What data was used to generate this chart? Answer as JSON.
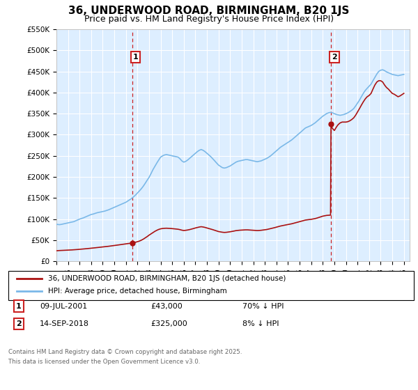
{
  "title": "36, UNDERWOOD ROAD, BIRMINGHAM, B20 1JS",
  "subtitle": "Price paid vs. HM Land Registry's House Price Index (HPI)",
  "ylim": [
    0,
    550000
  ],
  "yticks": [
    0,
    50000,
    100000,
    150000,
    200000,
    250000,
    300000,
    350000,
    400000,
    450000,
    500000,
    550000
  ],
  "ytick_labels": [
    "£0",
    "£50K",
    "£100K",
    "£150K",
    "£200K",
    "£250K",
    "£300K",
    "£350K",
    "£400K",
    "£450K",
    "£500K",
    "£550K"
  ],
  "background_color": "#ffffff",
  "plot_bg_color": "#ddeeff",
  "grid_color": "#ffffff",
  "hpi_color": "#7ab8e8",
  "price_color": "#aa1111",
  "vline_color": "#cc2222",
  "marker_box_color": "#cc2222",
  "title_fontsize": 11,
  "subtitle_fontsize": 9,
  "transaction1": {
    "date": "09-JUL-2001",
    "price": 43000,
    "hpi_diff": "70% ↓ HPI",
    "label": "1"
  },
  "transaction2": {
    "date": "14-SEP-2018",
    "price": 325000,
    "hpi_diff": "8% ↓ HPI",
    "label": "2"
  },
  "legend_label1": "36, UNDERWOOD ROAD, BIRMINGHAM, B20 1JS (detached house)",
  "legend_label2": "HPI: Average price, detached house, Birmingham",
  "footer1": "Contains HM Land Registry data © Crown copyright and database right 2025.",
  "footer2": "This data is licensed under the Open Government Licence v3.0.",
  "hpi_data": [
    [
      1995.0,
      87000
    ],
    [
      1995.08,
      87500
    ],
    [
      1995.17,
      87200
    ],
    [
      1995.25,
      86800
    ],
    [
      1995.33,
      87100
    ],
    [
      1995.42,
      87500
    ],
    [
      1995.5,
      88000
    ],
    [
      1995.58,
      88500
    ],
    [
      1995.67,
      89000
    ],
    [
      1995.75,
      89500
    ],
    [
      1995.83,
      90000
    ],
    [
      1995.92,
      90500
    ],
    [
      1996.0,
      91000
    ],
    [
      1996.08,
      91500
    ],
    [
      1996.17,
      92000
    ],
    [
      1996.25,
      92500
    ],
    [
      1996.33,
      93000
    ],
    [
      1996.42,
      93500
    ],
    [
      1996.5,
      94000
    ],
    [
      1996.58,
      95000
    ],
    [
      1996.67,
      96000
    ],
    [
      1996.75,
      97000
    ],
    [
      1996.83,
      98000
    ],
    [
      1996.92,
      99000
    ],
    [
      1997.0,
      100000
    ],
    [
      1997.17,
      101500
    ],
    [
      1997.33,
      103000
    ],
    [
      1997.5,
      105000
    ],
    [
      1997.67,
      107000
    ],
    [
      1997.83,
      109000
    ],
    [
      1998.0,
      111000
    ],
    [
      1998.17,
      112000
    ],
    [
      1998.33,
      113500
    ],
    [
      1998.5,
      115000
    ],
    [
      1998.67,
      116000
    ],
    [
      1998.83,
      117000
    ],
    [
      1999.0,
      118000
    ],
    [
      1999.17,
      119000
    ],
    [
      1999.33,
      120500
    ],
    [
      1999.5,
      122000
    ],
    [
      1999.67,
      124000
    ],
    [
      1999.83,
      126000
    ],
    [
      2000.0,
      128000
    ],
    [
      2000.17,
      130000
    ],
    [
      2000.33,
      132000
    ],
    [
      2000.5,
      134000
    ],
    [
      2000.67,
      136000
    ],
    [
      2000.83,
      138000
    ],
    [
      2001.0,
      140000
    ],
    [
      2001.17,
      143000
    ],
    [
      2001.33,
      146000
    ],
    [
      2001.5,
      149000
    ],
    [
      2001.67,
      153000
    ],
    [
      2001.83,
      157000
    ],
    [
      2002.0,
      162000
    ],
    [
      2002.17,
      167000
    ],
    [
      2002.33,
      172000
    ],
    [
      2002.5,
      178000
    ],
    [
      2002.67,
      185000
    ],
    [
      2002.83,
      192000
    ],
    [
      2003.0,
      199000
    ],
    [
      2003.17,
      208000
    ],
    [
      2003.33,
      217000
    ],
    [
      2003.5,
      225000
    ],
    [
      2003.67,
      233000
    ],
    [
      2003.83,
      240000
    ],
    [
      2004.0,
      247000
    ],
    [
      2004.17,
      250000
    ],
    [
      2004.33,
      252000
    ],
    [
      2004.5,
      253000
    ],
    [
      2004.67,
      252000
    ],
    [
      2004.83,
      251000
    ],
    [
      2005.0,
      250000
    ],
    [
      2005.17,
      249000
    ],
    [
      2005.33,
      248000
    ],
    [
      2005.5,
      247000
    ],
    [
      2005.67,
      243000
    ],
    [
      2005.83,
      238000
    ],
    [
      2006.0,
      235000
    ],
    [
      2006.17,
      237000
    ],
    [
      2006.33,
      240000
    ],
    [
      2006.5,
      244000
    ],
    [
      2006.67,
      248000
    ],
    [
      2006.83,
      252000
    ],
    [
      2007.0,
      256000
    ],
    [
      2007.17,
      260000
    ],
    [
      2007.33,
      263000
    ],
    [
      2007.5,
      265000
    ],
    [
      2007.67,
      263000
    ],
    [
      2007.83,
      260000
    ],
    [
      2008.0,
      256000
    ],
    [
      2008.17,
      252000
    ],
    [
      2008.33,
      248000
    ],
    [
      2008.5,
      243000
    ],
    [
      2008.67,
      238000
    ],
    [
      2008.83,
      233000
    ],
    [
      2009.0,
      228000
    ],
    [
      2009.17,
      225000
    ],
    [
      2009.33,
      222000
    ],
    [
      2009.5,
      221000
    ],
    [
      2009.67,
      222000
    ],
    [
      2009.83,
      224000
    ],
    [
      2010.0,
      226000
    ],
    [
      2010.17,
      229000
    ],
    [
      2010.33,
      232000
    ],
    [
      2010.5,
      235000
    ],
    [
      2010.67,
      237000
    ],
    [
      2010.83,
      238000
    ],
    [
      2011.0,
      239000
    ],
    [
      2011.17,
      240000
    ],
    [
      2011.33,
      241000
    ],
    [
      2011.5,
      241000
    ],
    [
      2011.67,
      240000
    ],
    [
      2011.83,
      239000
    ],
    [
      2012.0,
      238000
    ],
    [
      2012.17,
      237000
    ],
    [
      2012.33,
      236000
    ],
    [
      2012.5,
      237000
    ],
    [
      2012.67,
      238000
    ],
    [
      2012.83,
      240000
    ],
    [
      2013.0,
      242000
    ],
    [
      2013.17,
      244000
    ],
    [
      2013.33,
      247000
    ],
    [
      2013.5,
      250000
    ],
    [
      2013.67,
      254000
    ],
    [
      2013.83,
      258000
    ],
    [
      2014.0,
      262000
    ],
    [
      2014.17,
      266000
    ],
    [
      2014.33,
      270000
    ],
    [
      2014.5,
      273000
    ],
    [
      2014.67,
      276000
    ],
    [
      2014.83,
      279000
    ],
    [
      2015.0,
      282000
    ],
    [
      2015.17,
      285000
    ],
    [
      2015.33,
      288000
    ],
    [
      2015.5,
      292000
    ],
    [
      2015.67,
      296000
    ],
    [
      2015.83,
      300000
    ],
    [
      2016.0,
      304000
    ],
    [
      2016.17,
      308000
    ],
    [
      2016.33,
      312000
    ],
    [
      2016.5,
      316000
    ],
    [
      2016.67,
      318000
    ],
    [
      2016.83,
      320000
    ],
    [
      2017.0,
      322000
    ],
    [
      2017.17,
      325000
    ],
    [
      2017.33,
      328000
    ],
    [
      2017.5,
      332000
    ],
    [
      2017.67,
      336000
    ],
    [
      2017.83,
      340000
    ],
    [
      2018.0,
      344000
    ],
    [
      2018.17,
      347000
    ],
    [
      2018.33,
      350000
    ],
    [
      2018.5,
      352000
    ],
    [
      2018.67,
      353000
    ],
    [
      2018.83,
      352000
    ],
    [
      2019.0,
      350000
    ],
    [
      2019.17,
      348000
    ],
    [
      2019.33,
      347000
    ],
    [
      2019.5,
      346000
    ],
    [
      2019.67,
      347000
    ],
    [
      2019.83,
      348000
    ],
    [
      2020.0,
      350000
    ],
    [
      2020.17,
      352000
    ],
    [
      2020.33,
      355000
    ],
    [
      2020.5,
      358000
    ],
    [
      2020.67,
      362000
    ],
    [
      2020.83,
      368000
    ],
    [
      2021.0,
      375000
    ],
    [
      2021.17,
      382000
    ],
    [
      2021.33,
      390000
    ],
    [
      2021.5,
      398000
    ],
    [
      2021.67,
      405000
    ],
    [
      2021.83,
      410000
    ],
    [
      2022.0,
      415000
    ],
    [
      2022.17,
      420000
    ],
    [
      2022.33,
      428000
    ],
    [
      2022.5,
      436000
    ],
    [
      2022.67,
      444000
    ],
    [
      2022.83,
      450000
    ],
    [
      2023.0,
      453000
    ],
    [
      2023.17,
      454000
    ],
    [
      2023.33,
      452000
    ],
    [
      2023.5,
      449000
    ],
    [
      2023.67,
      447000
    ],
    [
      2023.83,
      445000
    ],
    [
      2024.0,
      443000
    ],
    [
      2024.17,
      442000
    ],
    [
      2024.33,
      441000
    ],
    [
      2024.5,
      440000
    ],
    [
      2024.67,
      441000
    ],
    [
      2024.83,
      442000
    ],
    [
      2025.0,
      443000
    ]
  ],
  "price_data": [
    [
      1995.0,
      25000
    ],
    [
      1995.08,
      25200
    ],
    [
      1995.17,
      25400
    ],
    [
      1995.25,
      25500
    ],
    [
      1995.33,
      25600
    ],
    [
      1995.42,
      25700
    ],
    [
      1995.5,
      25800
    ],
    [
      1995.58,
      25900
    ],
    [
      1995.67,
      26000
    ],
    [
      1995.75,
      26100
    ],
    [
      1995.83,
      26200
    ],
    [
      1995.92,
      26300
    ],
    [
      1996.0,
      26500
    ],
    [
      1996.17,
      26700
    ],
    [
      1996.33,
      27000
    ],
    [
      1996.5,
      27300
    ],
    [
      1996.67,
      27600
    ],
    [
      1996.83,
      28000
    ],
    [
      1997.0,
      28400
    ],
    [
      1997.17,
      28800
    ],
    [
      1997.33,
      29200
    ],
    [
      1997.5,
      29600
    ],
    [
      1997.67,
      30100
    ],
    [
      1997.83,
      30600
    ],
    [
      1998.0,
      31100
    ],
    [
      1998.17,
      31500
    ],
    [
      1998.33,
      32000
    ],
    [
      1998.5,
      32500
    ],
    [
      1998.67,
      33000
    ],
    [
      1998.83,
      33500
    ],
    [
      1999.0,
      34000
    ],
    [
      1999.17,
      34500
    ],
    [
      1999.33,
      35000
    ],
    [
      1999.5,
      35600
    ],
    [
      1999.67,
      36200
    ],
    [
      1999.83,
      36800
    ],
    [
      2000.0,
      37400
    ],
    [
      2000.17,
      38000
    ],
    [
      2000.33,
      38700
    ],
    [
      2000.5,
      39400
    ],
    [
      2000.67,
      40100
    ],
    [
      2000.83,
      40800
    ],
    [
      2001.0,
      41500
    ],
    [
      2001.17,
      42000
    ],
    [
      2001.33,
      42600
    ],
    [
      2001.5416,
      43000
    ],
    [
      2001.58,
      43500
    ],
    [
      2001.67,
      44200
    ],
    [
      2001.83,
      45200
    ],
    [
      2002.0,
      46500
    ],
    [
      2002.17,
      48000
    ],
    [
      2002.33,
      50000
    ],
    [
      2002.5,
      52500
    ],
    [
      2002.67,
      55500
    ],
    [
      2002.83,
      58500
    ],
    [
      2003.0,
      62000
    ],
    [
      2003.17,
      65000
    ],
    [
      2003.33,
      68000
    ],
    [
      2003.5,
      71000
    ],
    [
      2003.67,
      73500
    ],
    [
      2003.83,
      75500
    ],
    [
      2004.0,
      77000
    ],
    [
      2004.17,
      77800
    ],
    [
      2004.33,
      78200
    ],
    [
      2004.5,
      78400
    ],
    [
      2004.67,
      78200
    ],
    [
      2004.83,
      77900
    ],
    [
      2005.0,
      77500
    ],
    [
      2005.17,
      77000
    ],
    [
      2005.33,
      76500
    ],
    [
      2005.5,
      76000
    ],
    [
      2005.67,
      75000
    ],
    [
      2005.83,
      73800
    ],
    [
      2006.0,
      73000
    ],
    [
      2006.17,
      73500
    ],
    [
      2006.33,
      74200
    ],
    [
      2006.5,
      75200
    ],
    [
      2006.67,
      76400
    ],
    [
      2006.83,
      77600
    ],
    [
      2007.0,
      79000
    ],
    [
      2007.17,
      80200
    ],
    [
      2007.33,
      81200
    ],
    [
      2007.5,
      82000
    ],
    [
      2007.67,
      81300
    ],
    [
      2007.83,
      80300
    ],
    [
      2008.0,
      79000
    ],
    [
      2008.17,
      77800
    ],
    [
      2008.33,
      76500
    ],
    [
      2008.5,
      75000
    ],
    [
      2008.67,
      73500
    ],
    [
      2008.83,
      72000
    ],
    [
      2009.0,
      70500
    ],
    [
      2009.17,
      69600
    ],
    [
      2009.33,
      68900
    ],
    [
      2009.5,
      68400
    ],
    [
      2009.67,
      68700
    ],
    [
      2009.83,
      69300
    ],
    [
      2010.0,
      70000
    ],
    [
      2010.17,
      70800
    ],
    [
      2010.33,
      71700
    ],
    [
      2010.5,
      72700
    ],
    [
      2010.67,
      73300
    ],
    [
      2010.83,
      73700
    ],
    [
      2011.0,
      74000
    ],
    [
      2011.17,
      74200
    ],
    [
      2011.33,
      74500
    ],
    [
      2011.5,
      74500
    ],
    [
      2011.67,
      74200
    ],
    [
      2011.83,
      73900
    ],
    [
      2012.0,
      73500
    ],
    [
      2012.17,
      73200
    ],
    [
      2012.33,
      72900
    ],
    [
      2012.5,
      73100
    ],
    [
      2012.67,
      73500
    ],
    [
      2012.83,
      74100
    ],
    [
      2013.0,
      74700
    ],
    [
      2013.17,
      75400
    ],
    [
      2013.33,
      76400
    ],
    [
      2013.5,
      77300
    ],
    [
      2013.67,
      78500
    ],
    [
      2013.83,
      79700
    ],
    [
      2014.0,
      81000
    ],
    [
      2014.17,
      82200
    ],
    [
      2014.33,
      83500
    ],
    [
      2014.5,
      84500
    ],
    [
      2014.67,
      85500
    ],
    [
      2014.83,
      86300
    ],
    [
      2015.0,
      87200
    ],
    [
      2015.17,
      88100
    ],
    [
      2015.33,
      89000
    ],
    [
      2015.5,
      90200
    ],
    [
      2015.67,
      91500
    ],
    [
      2015.83,
      92700
    ],
    [
      2016.0,
      94000
    ],
    [
      2016.17,
      95200
    ],
    [
      2016.33,
      96500
    ],
    [
      2016.5,
      97700
    ],
    [
      2016.67,
      98400
    ],
    [
      2016.83,
      99000
    ],
    [
      2017.0,
      99500
    ],
    [
      2017.17,
      100300
    ],
    [
      2017.33,
      101200
    ],
    [
      2017.5,
      102500
    ],
    [
      2017.67,
      104000
    ],
    [
      2017.83,
      105500
    ],
    [
      2018.0,
      107000
    ],
    [
      2018.17,
      108000
    ],
    [
      2018.33,
      108800
    ],
    [
      2018.5,
      109200
    ],
    [
      2018.67,
      109500
    ],
    [
      2018.71,
      325000
    ],
    [
      2018.75,
      320000
    ],
    [
      2018.83,
      315000
    ],
    [
      2019.0,
      310000
    ],
    [
      2019.17,
      318000
    ],
    [
      2019.33,
      324000
    ],
    [
      2019.5,
      328000
    ],
    [
      2019.67,
      330000
    ],
    [
      2019.83,
      330000
    ],
    [
      2020.0,
      330000
    ],
    [
      2020.17,
      331000
    ],
    [
      2020.33,
      333000
    ],
    [
      2020.5,
      336000
    ],
    [
      2020.67,
      340000
    ],
    [
      2020.83,
      346000
    ],
    [
      2021.0,
      354000
    ],
    [
      2021.17,
      362000
    ],
    [
      2021.33,
      370000
    ],
    [
      2021.5,
      378000
    ],
    [
      2021.67,
      385000
    ],
    [
      2021.83,
      390000
    ],
    [
      2022.0,
      393000
    ],
    [
      2022.17,
      398000
    ],
    [
      2022.33,
      408000
    ],
    [
      2022.5,
      418000
    ],
    [
      2022.67,
      425000
    ],
    [
      2022.83,
      428000
    ],
    [
      2023.0,
      428000
    ],
    [
      2023.17,
      425000
    ],
    [
      2023.33,
      418000
    ],
    [
      2023.5,
      412000
    ],
    [
      2023.67,
      408000
    ],
    [
      2023.83,
      403000
    ],
    [
      2024.0,
      398000
    ],
    [
      2024.17,
      396000
    ],
    [
      2024.33,
      393000
    ],
    [
      2024.5,
      390000
    ],
    [
      2024.67,
      392000
    ],
    [
      2024.83,
      395000
    ],
    [
      2025.0,
      398000
    ]
  ],
  "t1_year": 2001.5416,
  "t2_year": 2018.71,
  "xmin": 1995,
  "xmax": 2025.5
}
